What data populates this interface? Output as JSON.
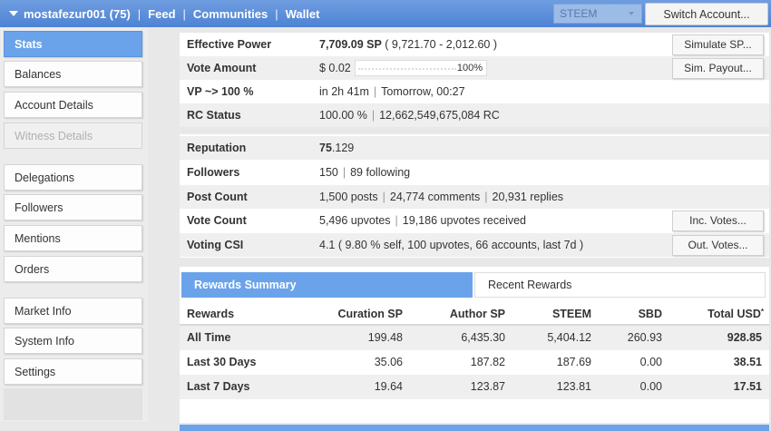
{
  "header": {
    "account": "mostafezur001 (75)",
    "nav": [
      "Feed",
      "Communities",
      "Wallet"
    ],
    "coin_select": "STEEM",
    "switch_label": "Switch Account..."
  },
  "sidebar": {
    "items": [
      {
        "label": "Stats"
      },
      {
        "label": "Balances"
      },
      {
        "label": "Account Details"
      },
      {
        "label": "Witness Details"
      },
      {
        "label": "Delegations"
      },
      {
        "label": "Followers"
      },
      {
        "label": "Mentions"
      },
      {
        "label": "Orders"
      },
      {
        "label": "Market Info"
      },
      {
        "label": "System Info"
      },
      {
        "label": "Settings"
      }
    ]
  },
  "stats": {
    "effective_power": {
      "label": "Effective Power",
      "value": "7,709.09 SP",
      "detail": "( 9,721.70 - 2,012.60 )",
      "button": "Simulate SP..."
    },
    "vote_amount": {
      "label": "Vote Amount",
      "value": "$ 0.02",
      "pct": "100%",
      "button": "Sim. Payout..."
    },
    "vp": {
      "label": "VP ~> 100 %",
      "value": "in 2h 41m",
      "detail": "Tomorrow, 00:27"
    },
    "rc": {
      "label": "RC Status",
      "value": "100.00 %",
      "detail": "12,662,549,675,084 RC"
    },
    "reputation": {
      "label": "Reputation",
      "value_bold": "75",
      "value_rest": ".129"
    },
    "followers": {
      "label": "Followers",
      "value": "150",
      "detail": "89 following"
    },
    "post_count": {
      "label": "Post Count",
      "value": "1,500 posts",
      "detail1": "24,774 comments",
      "detail2": "20,931 replies"
    },
    "vote_count": {
      "label": "Vote Count",
      "value": "5,496 upvotes",
      "detail": "19,186 upvotes received",
      "button": "Inc. Votes..."
    },
    "voting_csi": {
      "label": "Voting CSI",
      "value": "4.1 ( 9.80 % self, 100 upvotes, 66 accounts, last 7d )",
      "button": "Out. Votes..."
    }
  },
  "tabs": {
    "rewards_summary": "Rewards Summary",
    "recent_rewards": "Recent Rewards"
  },
  "rewards_table": {
    "columns": [
      "Rewards",
      "Curation SP",
      "Author SP",
      "STEEM",
      "SBD",
      "Total USD"
    ],
    "total_usd_marker": "*",
    "rows": [
      [
        "All Time",
        "199.48",
        "6,435.30",
        "5,404.12",
        "260.93",
        "928.85"
      ],
      [
        "Last 30 Days",
        "35.06",
        "187.82",
        "187.69",
        "0.00",
        "38.51"
      ],
      [
        "Last 7 Days",
        "19.64",
        "123.87",
        "123.81",
        "0.00",
        "17.51"
      ]
    ]
  }
}
